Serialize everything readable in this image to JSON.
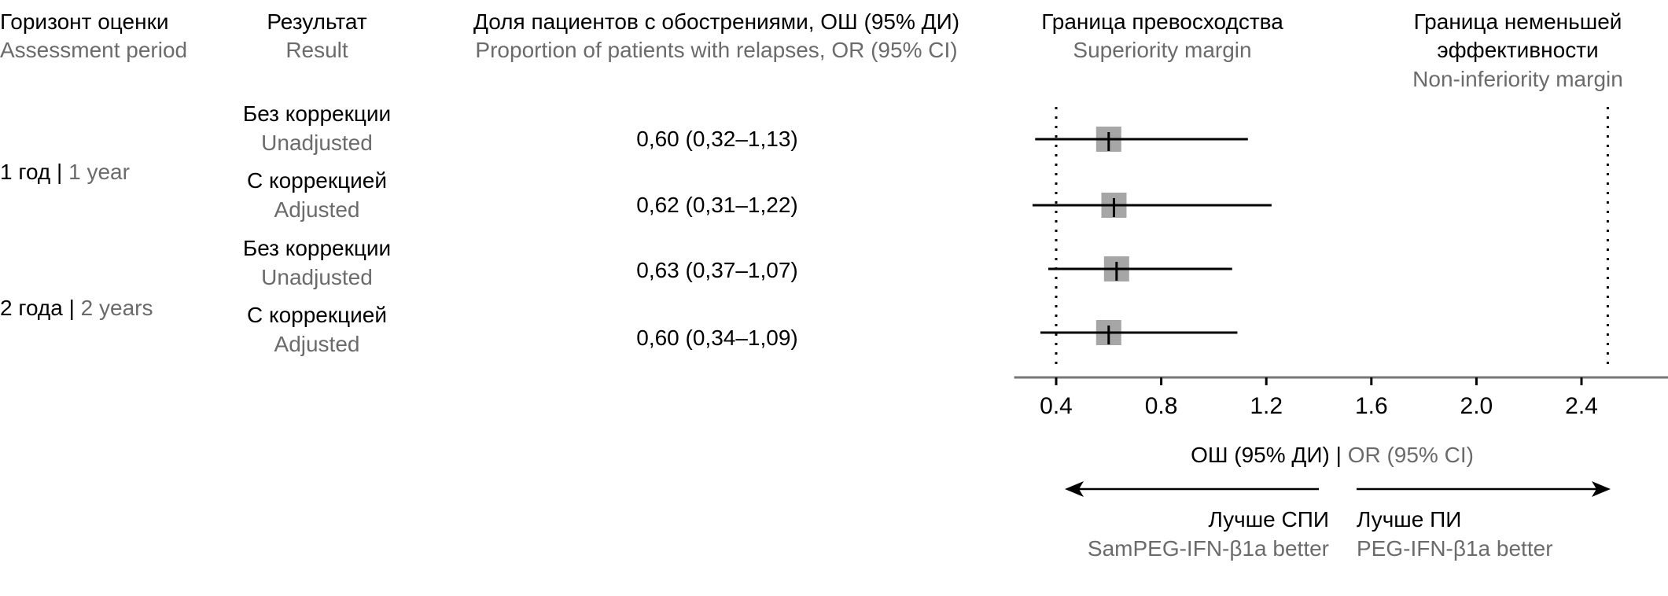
{
  "headers": {
    "period_ru": "Горизонт оценки",
    "period_en": "Assessment period",
    "result_ru": "Результат",
    "result_en": "Result",
    "proportion_ru": "Доля пациентов с обострениями, ОШ (95% ДИ)",
    "proportion_en": "Proportion of patients with relapses, OR (95% CI)",
    "superiority_ru": "Граница превосходства",
    "superiority_en": "Superiority margin",
    "noninferiority_ru_1": "Граница неменьшей",
    "noninferiority_ru_2": "эффективности",
    "noninferiority_en": "Non-inferiority margin"
  },
  "periods": [
    {
      "ru": "1 год",
      "sep": "|",
      "en": "1 year"
    },
    {
      "ru": "2 года",
      "sep": "|",
      "en": "2 years"
    }
  ],
  "rows": [
    {
      "result_ru": "Без коррекции",
      "result_en": "Unadjusted",
      "value_text": "0,60 (0,32–1,13)"
    },
    {
      "result_ru": "С коррекцией",
      "result_en": "Adjusted",
      "value_text": "0,62 (0,31–1,22)"
    },
    {
      "result_ru": "Без коррекции",
      "result_en": "Unadjusted",
      "value_text": "0,63 (0,37–1,07)"
    },
    {
      "result_ru": "С коррекцией",
      "result_en": "Adjusted",
      "value_text": "0,60 (0,34–1,09)"
    }
  ],
  "chart_data": {
    "type": "forest",
    "points": [
      {
        "or": 0.6,
        "lo": 0.32,
        "hi": 1.13
      },
      {
        "or": 0.62,
        "lo": 0.31,
        "hi": 1.22
      },
      {
        "or": 0.63,
        "lo": 0.37,
        "hi": 1.07
      },
      {
        "or": 0.6,
        "lo": 0.34,
        "hi": 1.09
      }
    ],
    "xlim": [
      0.24,
      2.76
    ],
    "ticks": [
      "0.4",
      "0.8",
      "1.2",
      "1.6",
      "2.0",
      "2.4"
    ],
    "superiority_margin": 0.4,
    "noninferiority_margin": 2.5,
    "xlabel_ru": "ОШ (95% ДИ)",
    "xlabel_sep": "|",
    "xlabel_en": "OR (95% CI)",
    "box_color": "#a6a6a6",
    "left_label_ru": "Лучше СПИ",
    "left_label_en": "SamPEG-IFN-β1a better",
    "right_label_ru": "Лучше ПИ",
    "right_label_en": "PEG-IFN-β1a better"
  }
}
